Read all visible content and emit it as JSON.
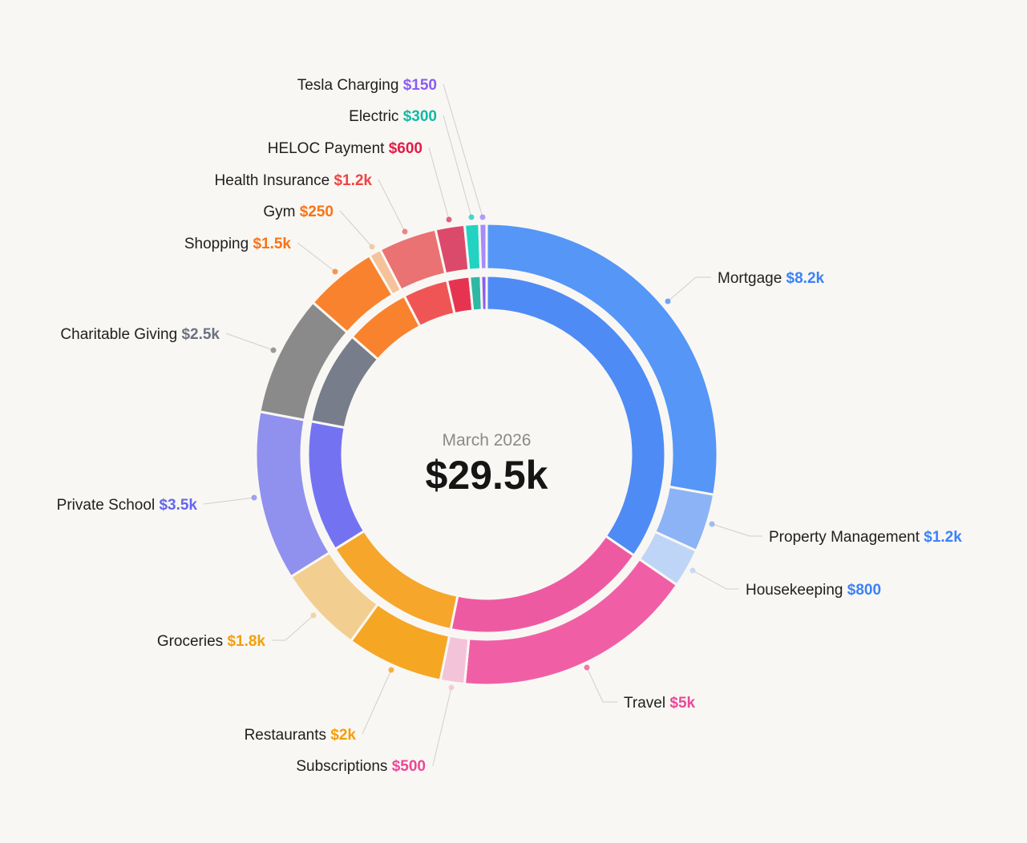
{
  "chart_data": {
    "type": "sunburst-donut",
    "title": "March 2026",
    "total_label": "$29.5k",
    "total": 29500,
    "categories": [
      {
        "name": "Mortgage",
        "value": 8200,
        "display": "$8.2k",
        "color": "#5596f7",
        "value_color": "#3b82f6",
        "group": 0
      },
      {
        "name": "Property Management",
        "value": 1200,
        "display": "$1.2k",
        "color": "#8cb3f6",
        "value_color": "#3b82f6",
        "group": 0
      },
      {
        "name": "Housekeeping",
        "value": 800,
        "display": "$800",
        "color": "#bfd5f7",
        "value_color": "#3b82f6",
        "group": 0
      },
      {
        "name": "Travel",
        "value": 5000,
        "display": "$5k",
        "color": "#f05fa5",
        "value_color": "#ec4899",
        "group": 1
      },
      {
        "name": "Subscriptions",
        "value": 500,
        "display": "$500",
        "color": "#f3c4d9",
        "value_color": "#ec4899",
        "group": 1
      },
      {
        "name": "Restaurants",
        "value": 2000,
        "display": "$2k",
        "color": "#f5a623",
        "value_color": "#f59e0b",
        "group": 2
      },
      {
        "name": "Groceries",
        "value": 1800,
        "display": "$1.8k",
        "color": "#f2cf91",
        "value_color": "#f59e0b",
        "group": 2
      },
      {
        "name": "Private School",
        "value": 3500,
        "display": "$3.5k",
        "color": "#9090ee",
        "value_color": "#6366f1",
        "group": 3
      },
      {
        "name": "Charitable Giving",
        "value": 2500,
        "display": "$2.5k",
        "color": "#8a8a8a",
        "value_color": "#6b7280",
        "group": 4
      },
      {
        "name": "Shopping",
        "value": 1500,
        "display": "$1.5k",
        "color": "#f9822e",
        "value_color": "#f97316",
        "group": 5
      },
      {
        "name": "Gym",
        "value": 250,
        "display": "$250",
        "color": "#f5c29b",
        "value_color": "#f97316",
        "group": 5
      },
      {
        "name": "Health Insurance",
        "value": 1200,
        "display": "$1.2k",
        "color": "#ea7272",
        "value_color": "#ef4444",
        "group": 6
      },
      {
        "name": "HELOC Payment",
        "value": 600,
        "display": "$600",
        "color": "#dc4a6b",
        "value_color": "#e11d48",
        "group": 7
      },
      {
        "name": "Electric",
        "value": 300,
        "display": "$300",
        "color": "#22d3c2",
        "value_color": "#14b8a6",
        "group": 8
      },
      {
        "name": "Tesla Charging",
        "value": 150,
        "display": "$150",
        "color": "#a78bfa",
        "value_color": "#8b5cf6",
        "group": 9
      }
    ],
    "groups": [
      {
        "value": 10200,
        "color": "#4f8bf5"
      },
      {
        "value": 5500,
        "color": "#ee5aa2"
      },
      {
        "value": 3800,
        "color": "#f5a62b"
      },
      {
        "value": 3500,
        "color": "#7373f2"
      },
      {
        "value": 2500,
        "color": "#777d8a"
      },
      {
        "value": 1750,
        "color": "#f9822e"
      },
      {
        "value": 1200,
        "color": "#f05555"
      },
      {
        "value": 600,
        "color": "#e63450"
      },
      {
        "value": 300,
        "color": "#2fb8a3"
      },
      {
        "value": 150,
        "color": "#8b5cf6"
      }
    ]
  }
}
